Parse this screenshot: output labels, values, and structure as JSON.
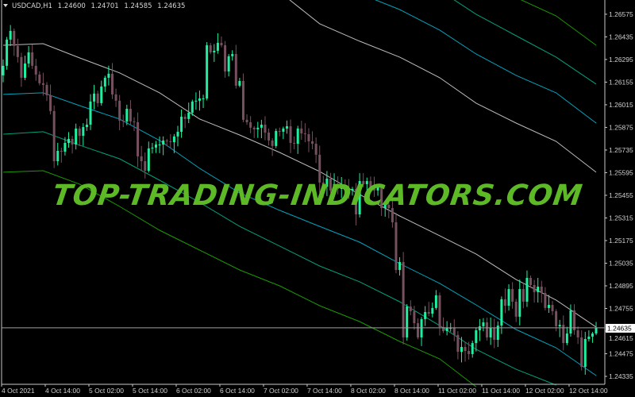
{
  "header": {
    "symbol": "USDCAD,H1",
    "open": "1.24600",
    "high": "1.24701",
    "low": "1.24585",
    "close": "1.24635"
  },
  "watermark": "TOP-TRADING-INDICATORS.COM",
  "colors": {
    "background": "#000000",
    "bull": "#1ef0a0",
    "bear": "#76505f",
    "axis": "#c8c8c8",
    "text": "#d0d0d0",
    "band_white": "#bdbdbd",
    "band_cyan": "#00a3bd",
    "band_teal": "#00a07a",
    "band_green": "#1a9a00",
    "price_line": "#a0a0a0"
  },
  "chart_data": {
    "type": "candlestick",
    "symbol": "USDCAD",
    "timeframe": "H1",
    "ylim": [
      1.24286,
      1.26663
    ],
    "grid": false,
    "yticks": [
      "1.26575",
      "1.26435",
      "1.26295",
      "1.26155",
      "1.26015",
      "1.25875",
      "1.25735",
      "1.25595",
      "1.25455",
      "1.25315",
      "1.25175",
      "1.25035",
      "1.24895",
      "1.24755",
      "1.24615",
      "1.24475",
      "1.24335"
    ],
    "xticks": [
      "4 Oct 2021",
      "4 Oct 14:00",
      "5 Oct 02:00",
      "5 Oct 14:00",
      "6 Oct 02:00",
      "6 Oct 14:00",
      "7 Oct 02:00",
      "7 Oct 14:00",
      "8 Oct 02:00",
      "8 Oct 14:00",
      "11 Oct 02:00",
      "11 Oct 14:00",
      "12 Oct 02:00",
      "12 Oct 14:00"
    ],
    "bars_per_xtick": 12,
    "current_price": "1.24635",
    "first_open": 1.26197,
    "close": [
      1.26256,
      1.26418,
      1.26472,
      1.26379,
      1.2631,
      1.26182,
      1.2627,
      1.26339,
      1.26256,
      1.26202,
      1.26148,
      1.26138,
      1.26074,
      1.25976,
      1.25666,
      1.2573,
      1.25725,
      1.25779,
      1.25804,
      1.25769,
      1.25868,
      1.25823,
      1.25877,
      1.25892,
      1.26035,
      1.26084,
      1.26025,
      1.26128,
      1.26182,
      1.26207,
      1.26079,
      1.2604,
      1.25917,
      1.25912,
      1.2599,
      1.25912,
      1.25907,
      1.25696,
      1.25666,
      1.25607,
      1.25745,
      1.2575,
      1.25769,
      1.25769,
      1.25794,
      1.25789,
      1.25784,
      1.25819,
      1.25848,
      1.25941,
      1.25927,
      1.25966,
      1.26035,
      1.2604,
      1.26054,
      1.26054,
      1.26383,
      1.26339,
      1.26349,
      1.26398,
      1.26383,
      1.26221,
      1.26315,
      1.26329,
      1.26133,
      1.26162,
      1.25922,
      1.25907,
      1.25873,
      1.25863,
      1.25873,
      1.25892,
      1.25843,
      1.25794,
      1.2576,
      1.25853,
      1.25848,
      1.25868,
      1.25882,
      1.25779,
      1.25774,
      1.25868,
      1.25838,
      1.25833,
      1.25789,
      1.25774,
      1.25706,
      1.25534,
      1.25509,
      1.25558,
      1.25485,
      1.25524,
      1.25494,
      1.25514,
      1.25494,
      1.25485,
      1.25494,
      1.25337,
      1.25543,
      1.25524,
      1.25543,
      1.25504,
      1.25485,
      1.25504,
      1.25376,
      1.25396,
      1.25376,
      1.25288,
      1.24993,
      1.25042,
      1.24576,
      1.24767,
      1.24738,
      1.24664,
      1.24576,
      1.24689,
      1.24733,
      1.24723,
      1.24758,
      1.24836,
      1.2464,
      1.24615,
      1.24635,
      1.24635,
      1.24591,
      1.24487,
      1.24517,
      1.24492,
      1.24473,
      1.24541,
      1.2462,
      1.24645,
      1.24669,
      1.24576,
      1.24635,
      1.24561,
      1.24649,
      1.24812,
      1.24772,
      1.24875,
      1.24797,
      1.24704,
      1.24875,
      1.24797,
      1.24944,
      1.249,
      1.24856,
      1.2489,
      1.24851,
      1.24758,
      1.24777,
      1.24738,
      1.24645,
      1.24654,
      1.24541,
      1.246,
      1.24743,
      1.2462,
      1.24576,
      1.24394,
      1.24566,
      1.24581,
      1.246,
      1.24635
    ],
    "bands": [
      {
        "color": "band_white",
        "points": [
          [
            0,
            1.26383
          ],
          [
            11,
            1.26393
          ],
          [
            21,
            1.26305
          ],
          [
            32,
            1.26212
          ],
          [
            43,
            1.26089
          ],
          [
            54,
            1.25927
          ],
          [
            65,
            1.25828
          ],
          [
            76,
            1.2572
          ],
          [
            87,
            1.25602
          ],
          [
            98,
            1.2546
          ],
          [
            109,
            1.25327
          ],
          [
            120,
            1.25205
          ],
          [
            130,
            1.25092
          ],
          [
            141,
            1.24934
          ],
          [
            152,
            1.24807
          ],
          [
            163,
            1.2464
          ]
        ]
      },
      {
        "color": "band_cyan",
        "points": [
          [
            0,
            1.26079
          ],
          [
            11,
            1.26089
          ],
          [
            21,
            1.2601
          ],
          [
            32,
            1.25927
          ],
          [
            43,
            1.25794
          ],
          [
            54,
            1.25622
          ],
          [
            65,
            1.2547
          ],
          [
            76,
            1.25362
          ],
          [
            87,
            1.25263
          ],
          [
            98,
            1.25165
          ],
          [
            109,
            1.25033
          ],
          [
            120,
            1.2491
          ],
          [
            130,
            1.24777
          ],
          [
            141,
            1.24625
          ],
          [
            152,
            1.24512
          ],
          [
            163,
            1.2434
          ]
        ]
      },
      {
        "color": "band_teal",
        "points": [
          [
            0,
            1.25833
          ],
          [
            11,
            1.25848
          ],
          [
            21,
            1.25765
          ],
          [
            32,
            1.25681
          ],
          [
            43,
            1.25548
          ],
          [
            54,
            1.25411
          ],
          [
            65,
            1.25263
          ],
          [
            76,
            1.25141
          ],
          [
            87,
            1.25018
          ],
          [
            98,
            1.2492
          ],
          [
            109,
            1.24797
          ],
          [
            120,
            1.24649
          ],
          [
            130,
            1.24502
          ],
          [
            141,
            1.24379
          ],
          [
            152,
            1.24281
          ]
        ]
      },
      {
        "color": "band_green",
        "points": [
          [
            0,
            1.25598
          ],
          [
            11,
            1.25607
          ],
          [
            21,
            1.25524
          ],
          [
            32,
            1.25386
          ],
          [
            43,
            1.25239
          ],
          [
            54,
            1.25116
          ],
          [
            65,
            1.24993
          ],
          [
            76,
            1.24895
          ],
          [
            87,
            1.24772
          ],
          [
            98,
            1.24674
          ],
          [
            109,
            1.24551
          ],
          [
            120,
            1.24443
          ],
          [
            130,
            1.24271
          ]
        ]
      },
      {
        "color": "band_white",
        "points": [
          [
            76,
            1.26713
          ],
          [
            87,
            1.26516
          ],
          [
            98,
            1.26408
          ],
          [
            109,
            1.2631
          ],
          [
            120,
            1.26182
          ],
          [
            130,
            1.26025
          ],
          [
            141,
            1.25902
          ],
          [
            152,
            1.25789
          ],
          [
            163,
            1.25598
          ]
        ]
      },
      {
        "color": "band_cyan",
        "points": [
          [
            98,
            1.26703
          ],
          [
            109,
            1.26604
          ],
          [
            120,
            1.26477
          ],
          [
            130,
            1.26329
          ],
          [
            141,
            1.26197
          ],
          [
            152,
            1.26089
          ],
          [
            163,
            1.25902
          ]
        ]
      },
      {
        "color": "band_teal",
        "points": [
          [
            120,
            1.26722
          ],
          [
            130,
            1.26575
          ],
          [
            141,
            1.26442
          ],
          [
            152,
            1.2631
          ],
          [
            163,
            1.26143
          ]
        ]
      },
      {
        "color": "band_green",
        "points": [
          [
            141,
            1.26678
          ],
          [
            152,
            1.26565
          ],
          [
            163,
            1.26383
          ]
        ]
      }
    ]
  }
}
